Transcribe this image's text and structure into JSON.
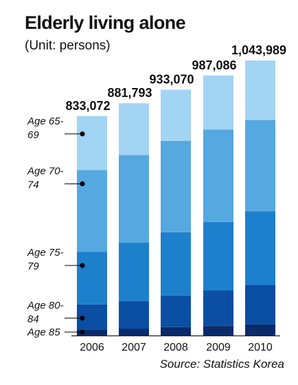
{
  "title": "Elderly living alone",
  "subtitle": "(Unit: persons)",
  "source": "Source: Statistics Korea",
  "colors": {
    "age_85": "#0a2a6a",
    "age_80_84": "#0a4fa4",
    "age_75_79": "#1d80cc",
    "age_70_74": "#56a8e0",
    "age_65_69": "#a2d4f3",
    "text": "#111111",
    "axis": "#222222"
  },
  "chart_data": {
    "type": "bar",
    "stacked": true,
    "title": "Elderly living alone",
    "subtitle": "(Unit: persons)",
    "categories": [
      "2006",
      "2007",
      "2008",
      "2009",
      "2010"
    ],
    "totals": [
      833072,
      881793,
      933070,
      987086,
      1043989
    ],
    "total_labels": [
      "833,072",
      "881,793",
      "933,070",
      "987,086",
      "1,043,989"
    ],
    "series": [
      {
        "name": "Age 85",
        "label_lines": [
          "Age 85"
        ],
        "values": [
          23000,
          26000,
          32000,
          36000,
          42000
        ]
      },
      {
        "name": "Age 80-84",
        "label_lines": [
          "Age 80-",
          "84"
        ],
        "values": [
          95000,
          105000,
          120000,
          135000,
          150000
        ]
      },
      {
        "name": "Age 75-79",
        "label_lines": [
          "Age 75-",
          "79"
        ],
        "values": [
          200000,
          222000,
          240000,
          260000,
          280000
        ]
      },
      {
        "name": "Age 70-74",
        "label_lines": [
          "Age 70-",
          "74"
        ],
        "values": [
          310000,
          332000,
          347000,
          351000,
          346000
        ]
      },
      {
        "name": "Age 65-69",
        "label_lines": [
          "Age 65-",
          "69"
        ],
        "values": [
          205072,
          196793,
          194070,
          205086,
          225989
        ]
      }
    ],
    "ylim": [
      0,
      1043989
    ],
    "legend": "left",
    "grid": false
  }
}
